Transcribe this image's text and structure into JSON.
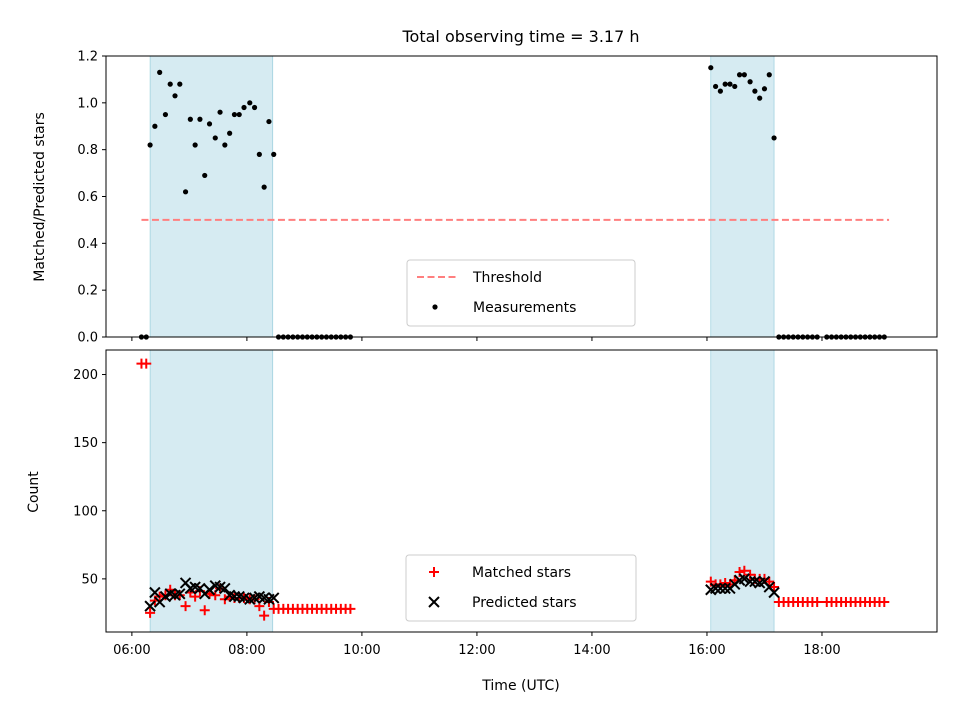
{
  "chart_data": [
    {
      "type": "scatter",
      "title": "Total observing time = 3.17 h",
      "xlabel": "",
      "ylabel": "Matched/Predicted stars",
      "xlim": [
        "05:33",
        "20:00"
      ],
      "ylim": [
        0,
        1.2
      ],
      "yticks": [
        "0.0",
        "0.2",
        "0.4",
        "0.6",
        "0.8",
        "1.0",
        "1.2"
      ],
      "shaded_intervals": [
        [
          "06:19",
          "08:27"
        ],
        [
          "16:04",
          "17:10"
        ]
      ],
      "threshold": {
        "name": "Threshold",
        "value": 0.5,
        "x_range": [
          "06:10",
          "19:10"
        ],
        "color": "#ff7f7f"
      },
      "legend": {
        "position": "lower center",
        "entries": [
          "Threshold",
          "Measurements"
        ]
      },
      "series": [
        {
          "name": "Measurements",
          "marker": "dot",
          "color": "#000000",
          "points": [
            [
              "06:10",
              0.0
            ],
            [
              "06:15",
              0.0
            ],
            [
              "06:19",
              0.82
            ],
            [
              "06:24",
              0.9
            ],
            [
              "06:29",
              1.13
            ],
            [
              "06:35",
              0.95
            ],
            [
              "06:40",
              1.08
            ],
            [
              "06:45",
              1.03
            ],
            [
              "06:50",
              1.08
            ],
            [
              "06:56",
              0.62
            ],
            [
              "07:01",
              0.93
            ],
            [
              "07:06",
              0.82
            ],
            [
              "07:11",
              0.93
            ],
            [
              "07:16",
              0.69
            ],
            [
              "07:21",
              0.91
            ],
            [
              "07:27",
              0.85
            ],
            [
              "07:32",
              0.96
            ],
            [
              "07:37",
              0.82
            ],
            [
              "07:42",
              0.87
            ],
            [
              "07:47",
              0.95
            ],
            [
              "07:52",
              0.95
            ],
            [
              "07:57",
              0.98
            ],
            [
              "08:03",
              1.0
            ],
            [
              "08:08",
              0.98
            ],
            [
              "08:13",
              0.78
            ],
            [
              "08:18",
              0.64
            ],
            [
              "08:23",
              0.92
            ],
            [
              "08:28",
              0.78
            ],
            [
              "08:33",
              0.0
            ],
            [
              "08:38",
              0.0
            ],
            [
              "08:43",
              0.0
            ],
            [
              "08:48",
              0.0
            ],
            [
              "08:53",
              0.0
            ],
            [
              "08:58",
              0.0
            ],
            [
              "09:03",
              0.0
            ],
            [
              "09:08",
              0.0
            ],
            [
              "09:13",
              0.0
            ],
            [
              "09:18",
              0.0
            ],
            [
              "09:23",
              0.0
            ],
            [
              "09:28",
              0.0
            ],
            [
              "09:33",
              0.0
            ],
            [
              "09:38",
              0.0
            ],
            [
              "09:43",
              0.0
            ],
            [
              "09:48",
              0.0
            ],
            [
              "16:04",
              1.15
            ],
            [
              "16:09",
              1.07
            ],
            [
              "16:14",
              1.05
            ],
            [
              "16:19",
              1.08
            ],
            [
              "16:24",
              1.08
            ],
            [
              "16:29",
              1.07
            ],
            [
              "16:34",
              1.12
            ],
            [
              "16:39",
              1.12
            ],
            [
              "16:45",
              1.09
            ],
            [
              "16:50",
              1.05
            ],
            [
              "16:55",
              1.02
            ],
            [
              "17:00",
              1.06
            ],
            [
              "17:05",
              1.12
            ],
            [
              "17:10",
              0.85
            ],
            [
              "17:15",
              0.0
            ],
            [
              "17:20",
              0.0
            ],
            [
              "17:25",
              0.0
            ],
            [
              "17:30",
              0.0
            ],
            [
              "17:35",
              0.0
            ],
            [
              "17:40",
              0.0
            ],
            [
              "17:45",
              0.0
            ],
            [
              "17:50",
              0.0
            ],
            [
              "17:55",
              0.0
            ],
            [
              "18:05",
              0.0
            ],
            [
              "18:10",
              0.0
            ],
            [
              "18:15",
              0.0
            ],
            [
              "18:20",
              0.0
            ],
            [
              "18:25",
              0.0
            ],
            [
              "18:30",
              0.0
            ],
            [
              "18:35",
              0.0
            ],
            [
              "18:40",
              0.0
            ],
            [
              "18:45",
              0.0
            ],
            [
              "18:50",
              0.0
            ],
            [
              "18:55",
              0.0
            ],
            [
              "19:00",
              0.0
            ],
            [
              "19:05",
              0.0
            ]
          ]
        }
      ]
    },
    {
      "type": "scatter",
      "title": "",
      "xlabel": "Time (UTC)",
      "ylabel": "Count",
      "xlim": [
        "05:33",
        "20:00"
      ],
      "ylim": [
        11,
        218
      ],
      "yticks": [
        "50",
        "100",
        "150",
        "200"
      ],
      "xticks": [
        "06:00",
        "08:00",
        "10:00",
        "12:00",
        "14:00",
        "16:00",
        "18:00"
      ],
      "shaded_intervals": [
        [
          "06:19",
          "08:27"
        ],
        [
          "16:04",
          "17:10"
        ]
      ],
      "legend": {
        "position": "lower center",
        "entries": [
          "Matched stars",
          "Predicted stars"
        ]
      },
      "series": [
        {
          "name": "Matched stars",
          "marker": "plus",
          "color": "#ff0000",
          "points": [
            [
              "06:10",
              208
            ],
            [
              "06:15",
              208
            ],
            [
              "06:19",
              25
            ],
            [
              "06:24",
              34
            ],
            [
              "06:29",
              37
            ],
            [
              "06:35",
              38
            ],
            [
              "06:40",
              42
            ],
            [
              "06:45",
              38
            ],
            [
              "06:50",
              38
            ],
            [
              "06:56",
              30
            ],
            [
              "07:01",
              40
            ],
            [
              "07:06",
              37
            ],
            [
              "07:11",
              41
            ],
            [
              "07:16",
              27
            ],
            [
              "07:21",
              39
            ],
            [
              "07:27",
              38
            ],
            [
              "07:32",
              43
            ],
            [
              "07:37",
              35
            ],
            [
              "07:42",
              37
            ],
            [
              "07:47",
              36
            ],
            [
              "07:52",
              36
            ],
            [
              "07:57",
              36
            ],
            [
              "08:03",
              35
            ],
            [
              "08:08",
              35
            ],
            [
              "08:13",
              30
            ],
            [
              "08:18",
              23
            ],
            [
              "08:23",
              33
            ],
            [
              "08:28",
              28
            ],
            [
              "08:33",
              28
            ],
            [
              "08:38",
              28
            ],
            [
              "08:43",
              28
            ],
            [
              "08:48",
              28
            ],
            [
              "08:53",
              28
            ],
            [
              "08:58",
              28
            ],
            [
              "09:03",
              28
            ],
            [
              "09:08",
              28
            ],
            [
              "09:13",
              28
            ],
            [
              "09:18",
              28
            ],
            [
              "09:23",
              28
            ],
            [
              "09:28",
              28
            ],
            [
              "09:33",
              28
            ],
            [
              "09:38",
              28
            ],
            [
              "09:43",
              28
            ],
            [
              "09:48",
              28
            ],
            [
              "16:04",
              48
            ],
            [
              "16:09",
              46
            ],
            [
              "16:14",
              46
            ],
            [
              "16:19",
              47
            ],
            [
              "16:24",
              46
            ],
            [
              "16:29",
              49
            ],
            [
              "16:34",
              55
            ],
            [
              "16:39",
              56
            ],
            [
              "16:45",
              53
            ],
            [
              "16:50",
              50
            ],
            [
              "16:55",
              50
            ],
            [
              "17:00",
              50
            ],
            [
              "17:05",
              48
            ],
            [
              "17:10",
              44
            ],
            [
              "17:15",
              33
            ],
            [
              "17:20",
              33
            ],
            [
              "17:25",
              33
            ],
            [
              "17:30",
              33
            ],
            [
              "17:35",
              33
            ],
            [
              "17:40",
              33
            ],
            [
              "17:45",
              33
            ],
            [
              "17:50",
              33
            ],
            [
              "17:55",
              33
            ],
            [
              "18:05",
              33
            ],
            [
              "18:10",
              33
            ],
            [
              "18:15",
              33
            ],
            [
              "18:20",
              33
            ],
            [
              "18:25",
              33
            ],
            [
              "18:30",
              33
            ],
            [
              "18:35",
              33
            ],
            [
              "18:40",
              33
            ],
            [
              "18:45",
              33
            ],
            [
              "18:50",
              33
            ],
            [
              "18:55",
              33
            ],
            [
              "19:00",
              33
            ],
            [
              "19:05",
              33
            ]
          ]
        },
        {
          "name": "Predicted stars",
          "marker": "x",
          "color": "#000000",
          "points": [
            [
              "06:19",
              30
            ],
            [
              "06:24",
              40
            ],
            [
              "06:29",
              33
            ],
            [
              "06:35",
              37
            ],
            [
              "06:40",
              39
            ],
            [
              "06:45",
              38
            ],
            [
              "06:50",
              39
            ],
            [
              "06:56",
              47
            ],
            [
              "07:01",
              43
            ],
            [
              "07:06",
              44
            ],
            [
              "07:11",
              43
            ],
            [
              "07:16",
              39
            ],
            [
              "07:21",
              42
            ],
            [
              "07:27",
              45
            ],
            [
              "07:32",
              44
            ],
            [
              "07:37",
              43
            ],
            [
              "07:42",
              38
            ],
            [
              "07:47",
              37
            ],
            [
              "07:52",
              37
            ],
            [
              "07:57",
              36
            ],
            [
              "08:03",
              35
            ],
            [
              "08:08",
              36
            ],
            [
              "08:13",
              37
            ],
            [
              "08:18",
              36
            ],
            [
              "08:23",
              35
            ],
            [
              "08:28",
              36
            ],
            [
              "16:04",
              42
            ],
            [
              "16:09",
              43
            ],
            [
              "16:14",
              43
            ],
            [
              "16:19",
              43
            ],
            [
              "16:24",
              43
            ],
            [
              "16:29",
              46
            ],
            [
              "16:34",
              49
            ],
            [
              "16:39",
              50
            ],
            [
              "16:45",
              48
            ],
            [
              "16:50",
              48
            ],
            [
              "16:55",
              47
            ],
            [
              "17:00",
              48
            ],
            [
              "17:05",
              44
            ],
            [
              "17:10",
              40
            ]
          ]
        }
      ]
    }
  ]
}
